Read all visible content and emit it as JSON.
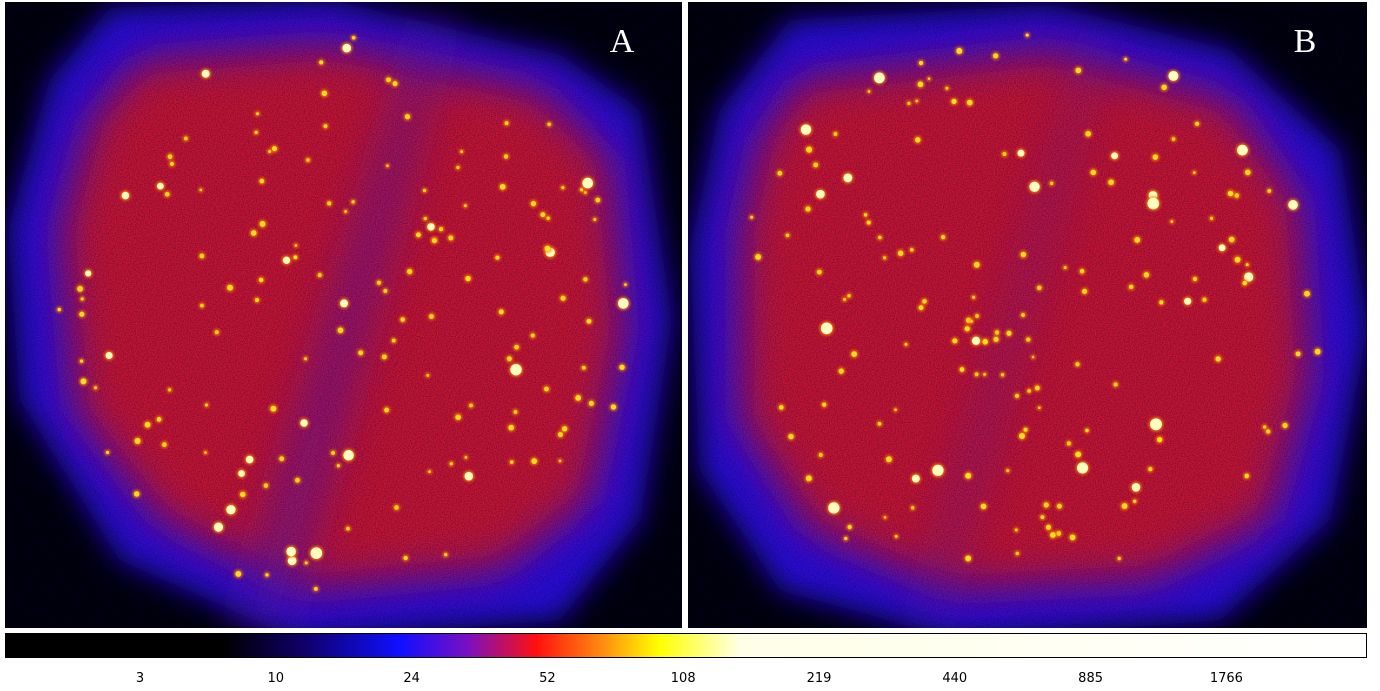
{
  "panels": [
    {
      "label": "A"
    },
    {
      "label": "B"
    }
  ],
  "colorbar": {
    "ticks": [
      3,
      10,
      24,
      52,
      108,
      219,
      440,
      885,
      1766
    ]
  }
}
